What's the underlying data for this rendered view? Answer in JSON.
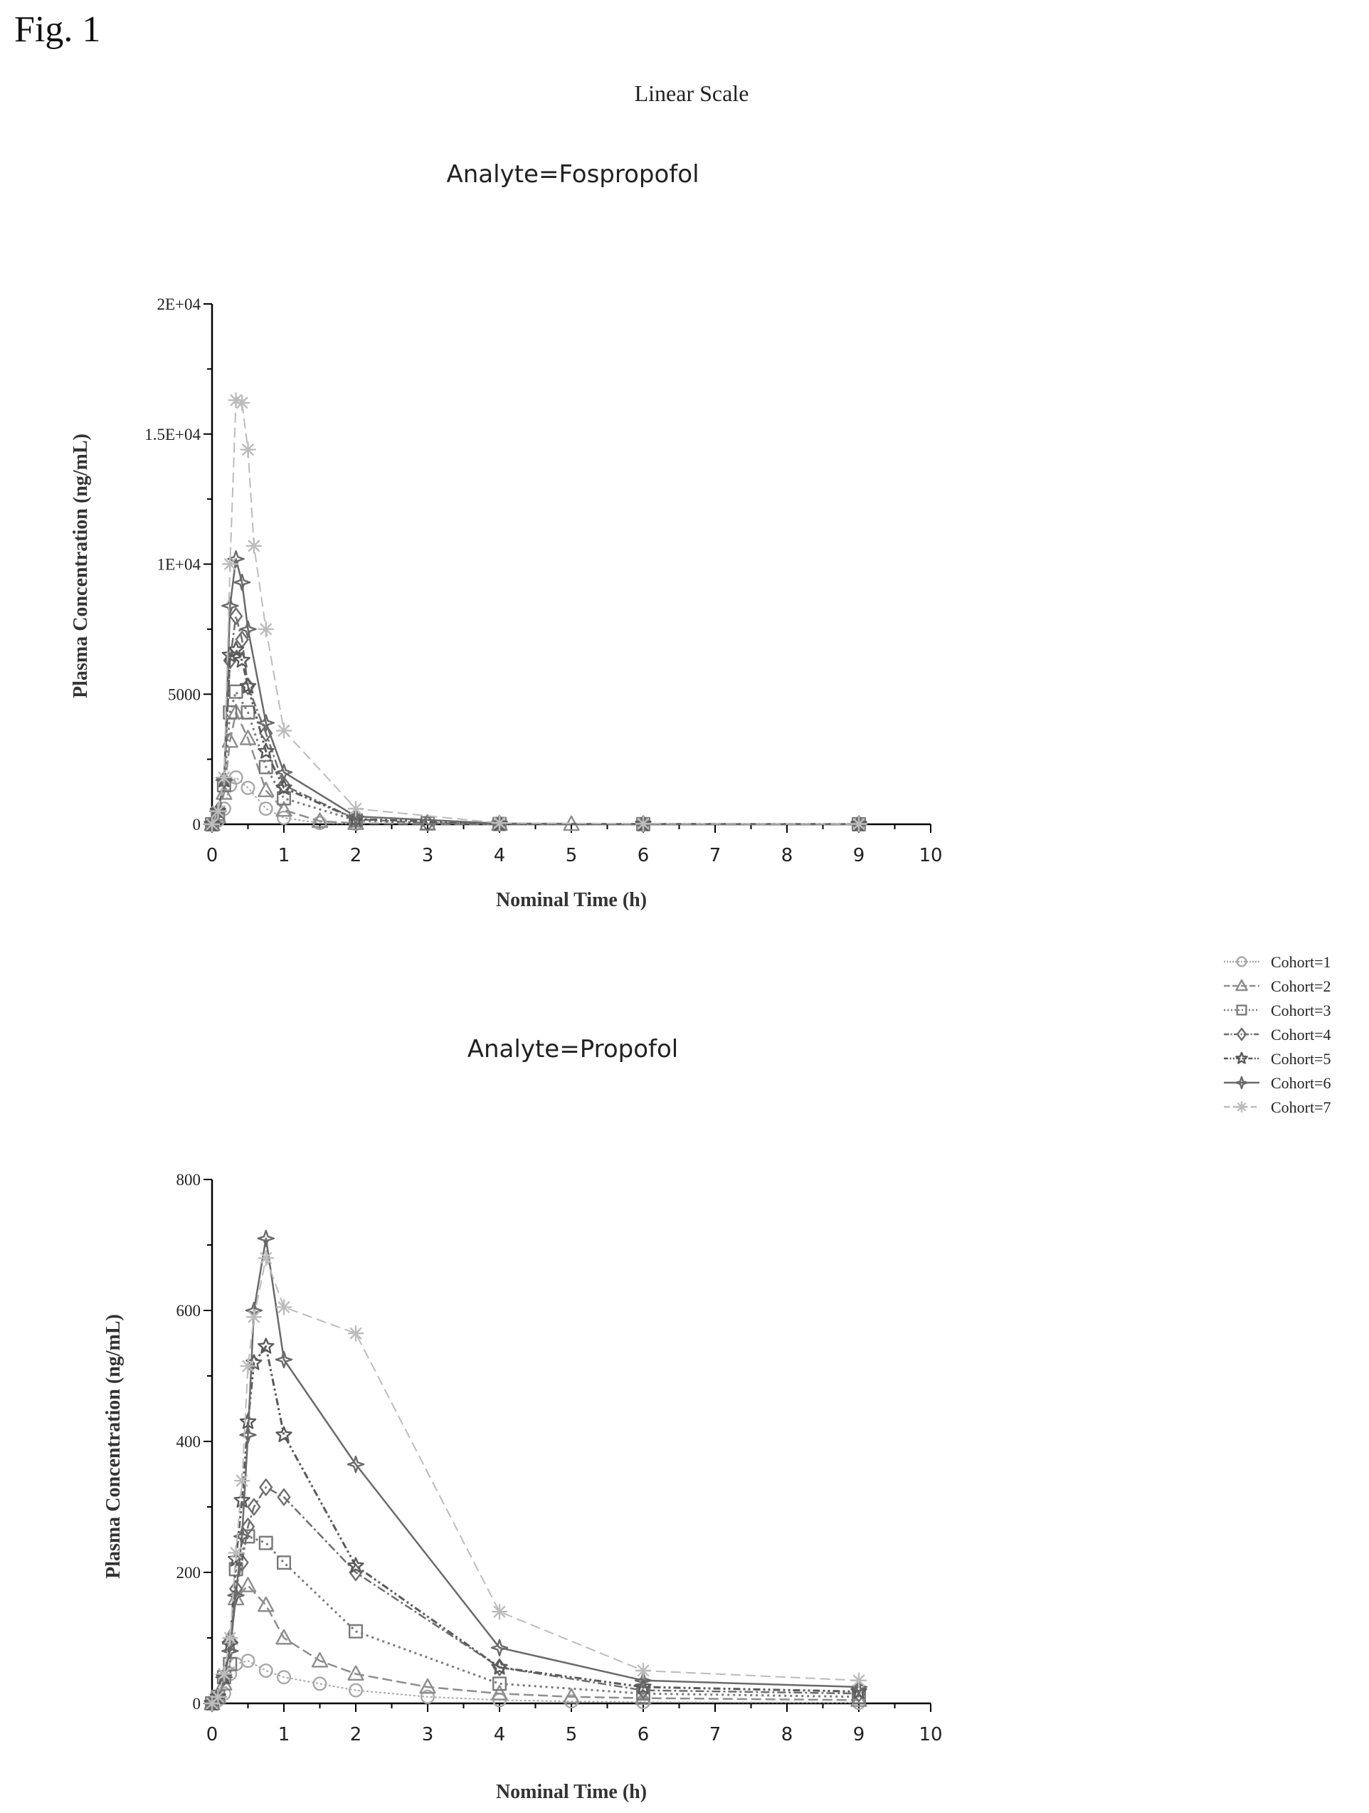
{
  "figure_label": "Fig. 1",
  "scale_title": "Linear Scale",
  "legend": {
    "items": [
      {
        "label": "Cohort=1",
        "marker": "circle",
        "dash": "3,3",
        "color": "#a8a8a8",
        "width": 2
      },
      {
        "label": "Cohort=2",
        "marker": "triangle",
        "dash": "14,6",
        "color": "#8e8e8e",
        "width": 2.5
      },
      {
        "label": "Cohort=3",
        "marker": "square",
        "dash": "3,5",
        "color": "#7a7a7a",
        "width": 3
      },
      {
        "label": "Cohort=4",
        "marker": "diamond",
        "dash": "12,4,3,4",
        "color": "#6e6e6e",
        "width": 2.5
      },
      {
        "label": "Cohort=5",
        "marker": "star",
        "dash": "10,4,3,4,3,4",
        "color": "#5a5a5a",
        "width": 3
      },
      {
        "label": "Cohort=6",
        "marker": "star4",
        "dash": "",
        "color": "#6a6a6a",
        "width": 2.5
      },
      {
        "label": "Cohort=7",
        "marker": "asterisk",
        "dash": "14,7",
        "color": "#bcbcbc",
        "width": 2
      }
    ]
  },
  "chart_data": [
    {
      "type": "line",
      "title": "Analyte=Fospropofol",
      "xlabel": "Nominal Time (h)",
      "ylabel": "Plasma Concentration (ng/mL)",
      "xlim": [
        0,
        10
      ],
      "ylim": [
        0,
        20000
      ],
      "xticks": [
        0,
        1,
        2,
        3,
        4,
        5,
        6,
        7,
        8,
        9,
        10
      ],
      "xtick_labels": [
        "0",
        "1",
        "2",
        "3",
        "4",
        "5",
        "6",
        "7",
        "8",
        "9",
        "10"
      ],
      "yticks": [
        0,
        5000,
        10000,
        15000,
        20000
      ],
      "ytick_labels": [
        "0",
        "5000",
        "1E+04",
        "1.5E+04",
        "2E+04"
      ],
      "series": [
        {
          "name": "Cohort=1",
          "x": [
            0,
            0.083,
            0.167,
            0.25,
            0.333,
            0.5,
            0.75,
            1,
            1.5,
            2
          ],
          "y": [
            0,
            150,
            600,
            1500,
            1800,
            1400,
            600,
            250,
            50,
            20
          ]
        },
        {
          "name": "Cohort=2",
          "x": [
            0,
            0.083,
            0.167,
            0.25,
            0.333,
            0.5,
            0.75,
            1,
            1.5,
            2,
            3,
            4,
            5
          ],
          "y": [
            0,
            300,
            1200,
            3200,
            4300,
            3300,
            1300,
            550,
            120,
            40,
            15,
            8,
            5
          ]
        },
        {
          "name": "Cohort=3",
          "x": [
            0,
            0.083,
            0.167,
            0.25,
            0.333,
            0.5,
            0.75,
            1,
            2,
            3,
            4,
            6,
            9
          ],
          "y": [
            0,
            400,
            1500,
            4300,
            5100,
            4300,
            2200,
            1000,
            150,
            40,
            15,
            8,
            5
          ]
        },
        {
          "name": "Cohort=4",
          "x": [
            0,
            0.083,
            0.167,
            0.25,
            0.333,
            0.417,
            0.5,
            0.75,
            1,
            2,
            3,
            4,
            6,
            9
          ],
          "y": [
            0,
            500,
            1700,
            6300,
            8000,
            7100,
            5300,
            3500,
            1500,
            200,
            50,
            20,
            10,
            5
          ]
        },
        {
          "name": "Cohort=5",
          "x": [
            0,
            0.083,
            0.167,
            0.25,
            0.333,
            0.417,
            0.5,
            0.75,
            1,
            2,
            4,
            6,
            9
          ],
          "y": [
            0,
            500,
            1700,
            6500,
            6700,
            6300,
            5300,
            2800,
            1400,
            200,
            20,
            10,
            5
          ]
        },
        {
          "name": "Cohort=6",
          "x": [
            0,
            0.083,
            0.167,
            0.25,
            0.333,
            0.417,
            0.5,
            0.75,
            1,
            2,
            4,
            6,
            9
          ],
          "y": [
            0,
            500,
            1700,
            8400,
            10200,
            9300,
            7500,
            3900,
            2000,
            300,
            30,
            15,
            8
          ]
        },
        {
          "name": "Cohort=7",
          "x": [
            0,
            0.083,
            0.167,
            0.25,
            0.333,
            0.417,
            0.5,
            0.583,
            0.75,
            1,
            2,
            4,
            6,
            9
          ],
          "y": [
            0,
            500,
            1800,
            10000,
            16300,
            16200,
            14400,
            10700,
            7500,
            3600,
            600,
            50,
            20,
            10
          ]
        }
      ]
    },
    {
      "type": "line",
      "title": "Analyte=Propofol",
      "xlabel": "Nominal Time (h)",
      "ylabel": "Plasma Concentration (ng/mL)",
      "xlim": [
        0,
        10
      ],
      "ylim": [
        0,
        800
      ],
      "xticks": [
        0,
        1,
        2,
        3,
        4,
        5,
        6,
        7,
        8,
        9,
        10
      ],
      "xtick_labels": [
        "0",
        "1",
        "2",
        "3",
        "4",
        "5",
        "6",
        "7",
        "8",
        "9",
        "10"
      ],
      "yticks": [
        0,
        200,
        400,
        600,
        800
      ],
      "ytick_labels": [
        "0",
        "200",
        "400",
        "600",
        "800"
      ],
      "series": [
        {
          "name": "Cohort=1",
          "x": [
            0,
            0.083,
            0.167,
            0.25,
            0.333,
            0.5,
            0.75,
            1,
            1.5,
            2,
            3,
            4,
            5,
            6,
            9
          ],
          "y": [
            0,
            5,
            15,
            45,
            60,
            65,
            50,
            40,
            30,
            20,
            10,
            5,
            3,
            2,
            1
          ]
        },
        {
          "name": "Cohort=2",
          "x": [
            0,
            0.083,
            0.167,
            0.25,
            0.333,
            0.5,
            0.75,
            1,
            1.5,
            2,
            3,
            4,
            5,
            6,
            9
          ],
          "y": [
            0,
            10,
            30,
            100,
            160,
            180,
            150,
            100,
            65,
            45,
            25,
            15,
            10,
            8,
            5
          ]
        },
        {
          "name": "Cohort=3",
          "x": [
            0,
            0.083,
            0.167,
            0.25,
            0.333,
            0.5,
            0.75,
            1,
            2,
            4,
            6,
            9
          ],
          "y": [
            0,
            10,
            40,
            60,
            205,
            255,
            245,
            215,
            110,
            30,
            15,
            10
          ]
        },
        {
          "name": "Cohort=4",
          "x": [
            0,
            0.083,
            0.167,
            0.25,
            0.333,
            0.417,
            0.5,
            0.583,
            0.75,
            1,
            2,
            4,
            6,
            9
          ],
          "y": [
            0,
            10,
            40,
            95,
            175,
            215,
            270,
            300,
            330,
            315,
            200,
            55,
            20,
            15
          ]
        },
        {
          "name": "Cohort=5",
          "x": [
            0,
            0.083,
            0.167,
            0.25,
            0.333,
            0.417,
            0.5,
            0.583,
            0.75,
            1,
            2,
            4,
            6,
            9
          ],
          "y": [
            0,
            10,
            40,
            90,
            220,
            310,
            430,
            520,
            545,
            410,
            210,
            55,
            25,
            18
          ]
        },
        {
          "name": "Cohort=6",
          "x": [
            0,
            0.083,
            0.167,
            0.25,
            0.333,
            0.417,
            0.5,
            0.583,
            0.75,
            1,
            2,
            4,
            6,
            9
          ],
          "y": [
            0,
            10,
            40,
            80,
            165,
            255,
            410,
            600,
            710,
            525,
            365,
            85,
            35,
            25
          ]
        },
        {
          "name": "Cohort=7",
          "x": [
            0,
            0.083,
            0.167,
            0.25,
            0.333,
            0.417,
            0.5,
            0.583,
            0.75,
            1,
            2,
            4,
            6,
            9
          ],
          "y": [
            0,
            10,
            45,
            100,
            230,
            340,
            515,
            590,
            680,
            605,
            565,
            140,
            50,
            35
          ]
        }
      ]
    }
  ]
}
